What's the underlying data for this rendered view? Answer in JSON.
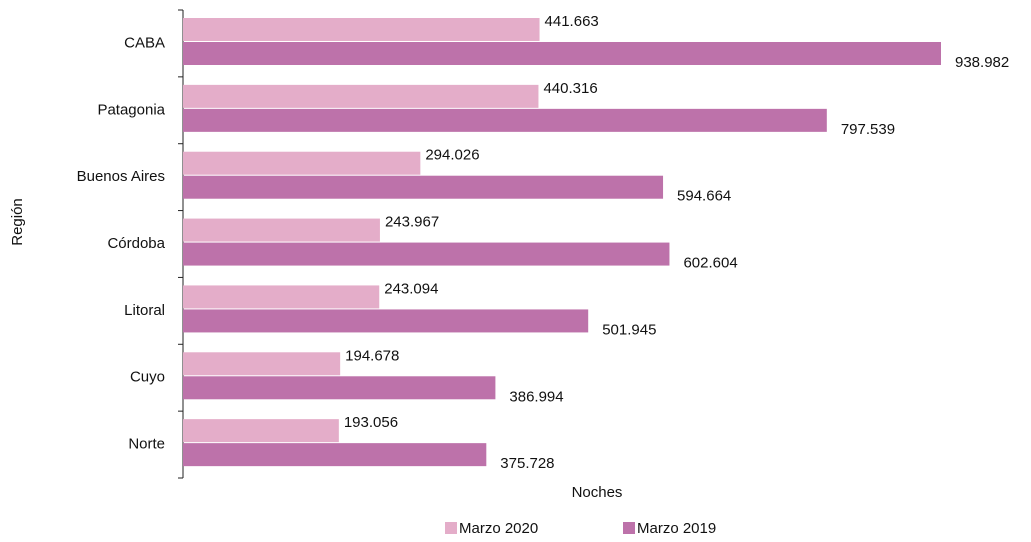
{
  "chart_data": {
    "type": "bar",
    "orientation": "horizontal",
    "y_label": "Región",
    "x_label": "Noches",
    "categories": [
      "CABA",
      "Patagonia",
      "Buenos Aires",
      "Córdoba",
      "Litoral",
      "Cuyo",
      "Norte"
    ],
    "series": [
      {
        "name": "Marzo 2020",
        "color": "#e4adc9",
        "values": [
          441663,
          440316,
          294026,
          243967,
          243094,
          194678,
          193056
        ],
        "value_labels": [
          "441.663",
          "440.316",
          "294.026",
          "243.967",
          "243.094",
          "194.678",
          "193.056"
        ]
      },
      {
        "name": "Marzo 2019",
        "color": "#bd72aa",
        "values": [
          938982,
          797539,
          594664,
          602604,
          501945,
          386994,
          375728
        ],
        "value_labels": [
          "938.982",
          "797.539",
          "594.664",
          "602.604",
          "501.945",
          "386.994",
          "375.728"
        ]
      }
    ]
  }
}
